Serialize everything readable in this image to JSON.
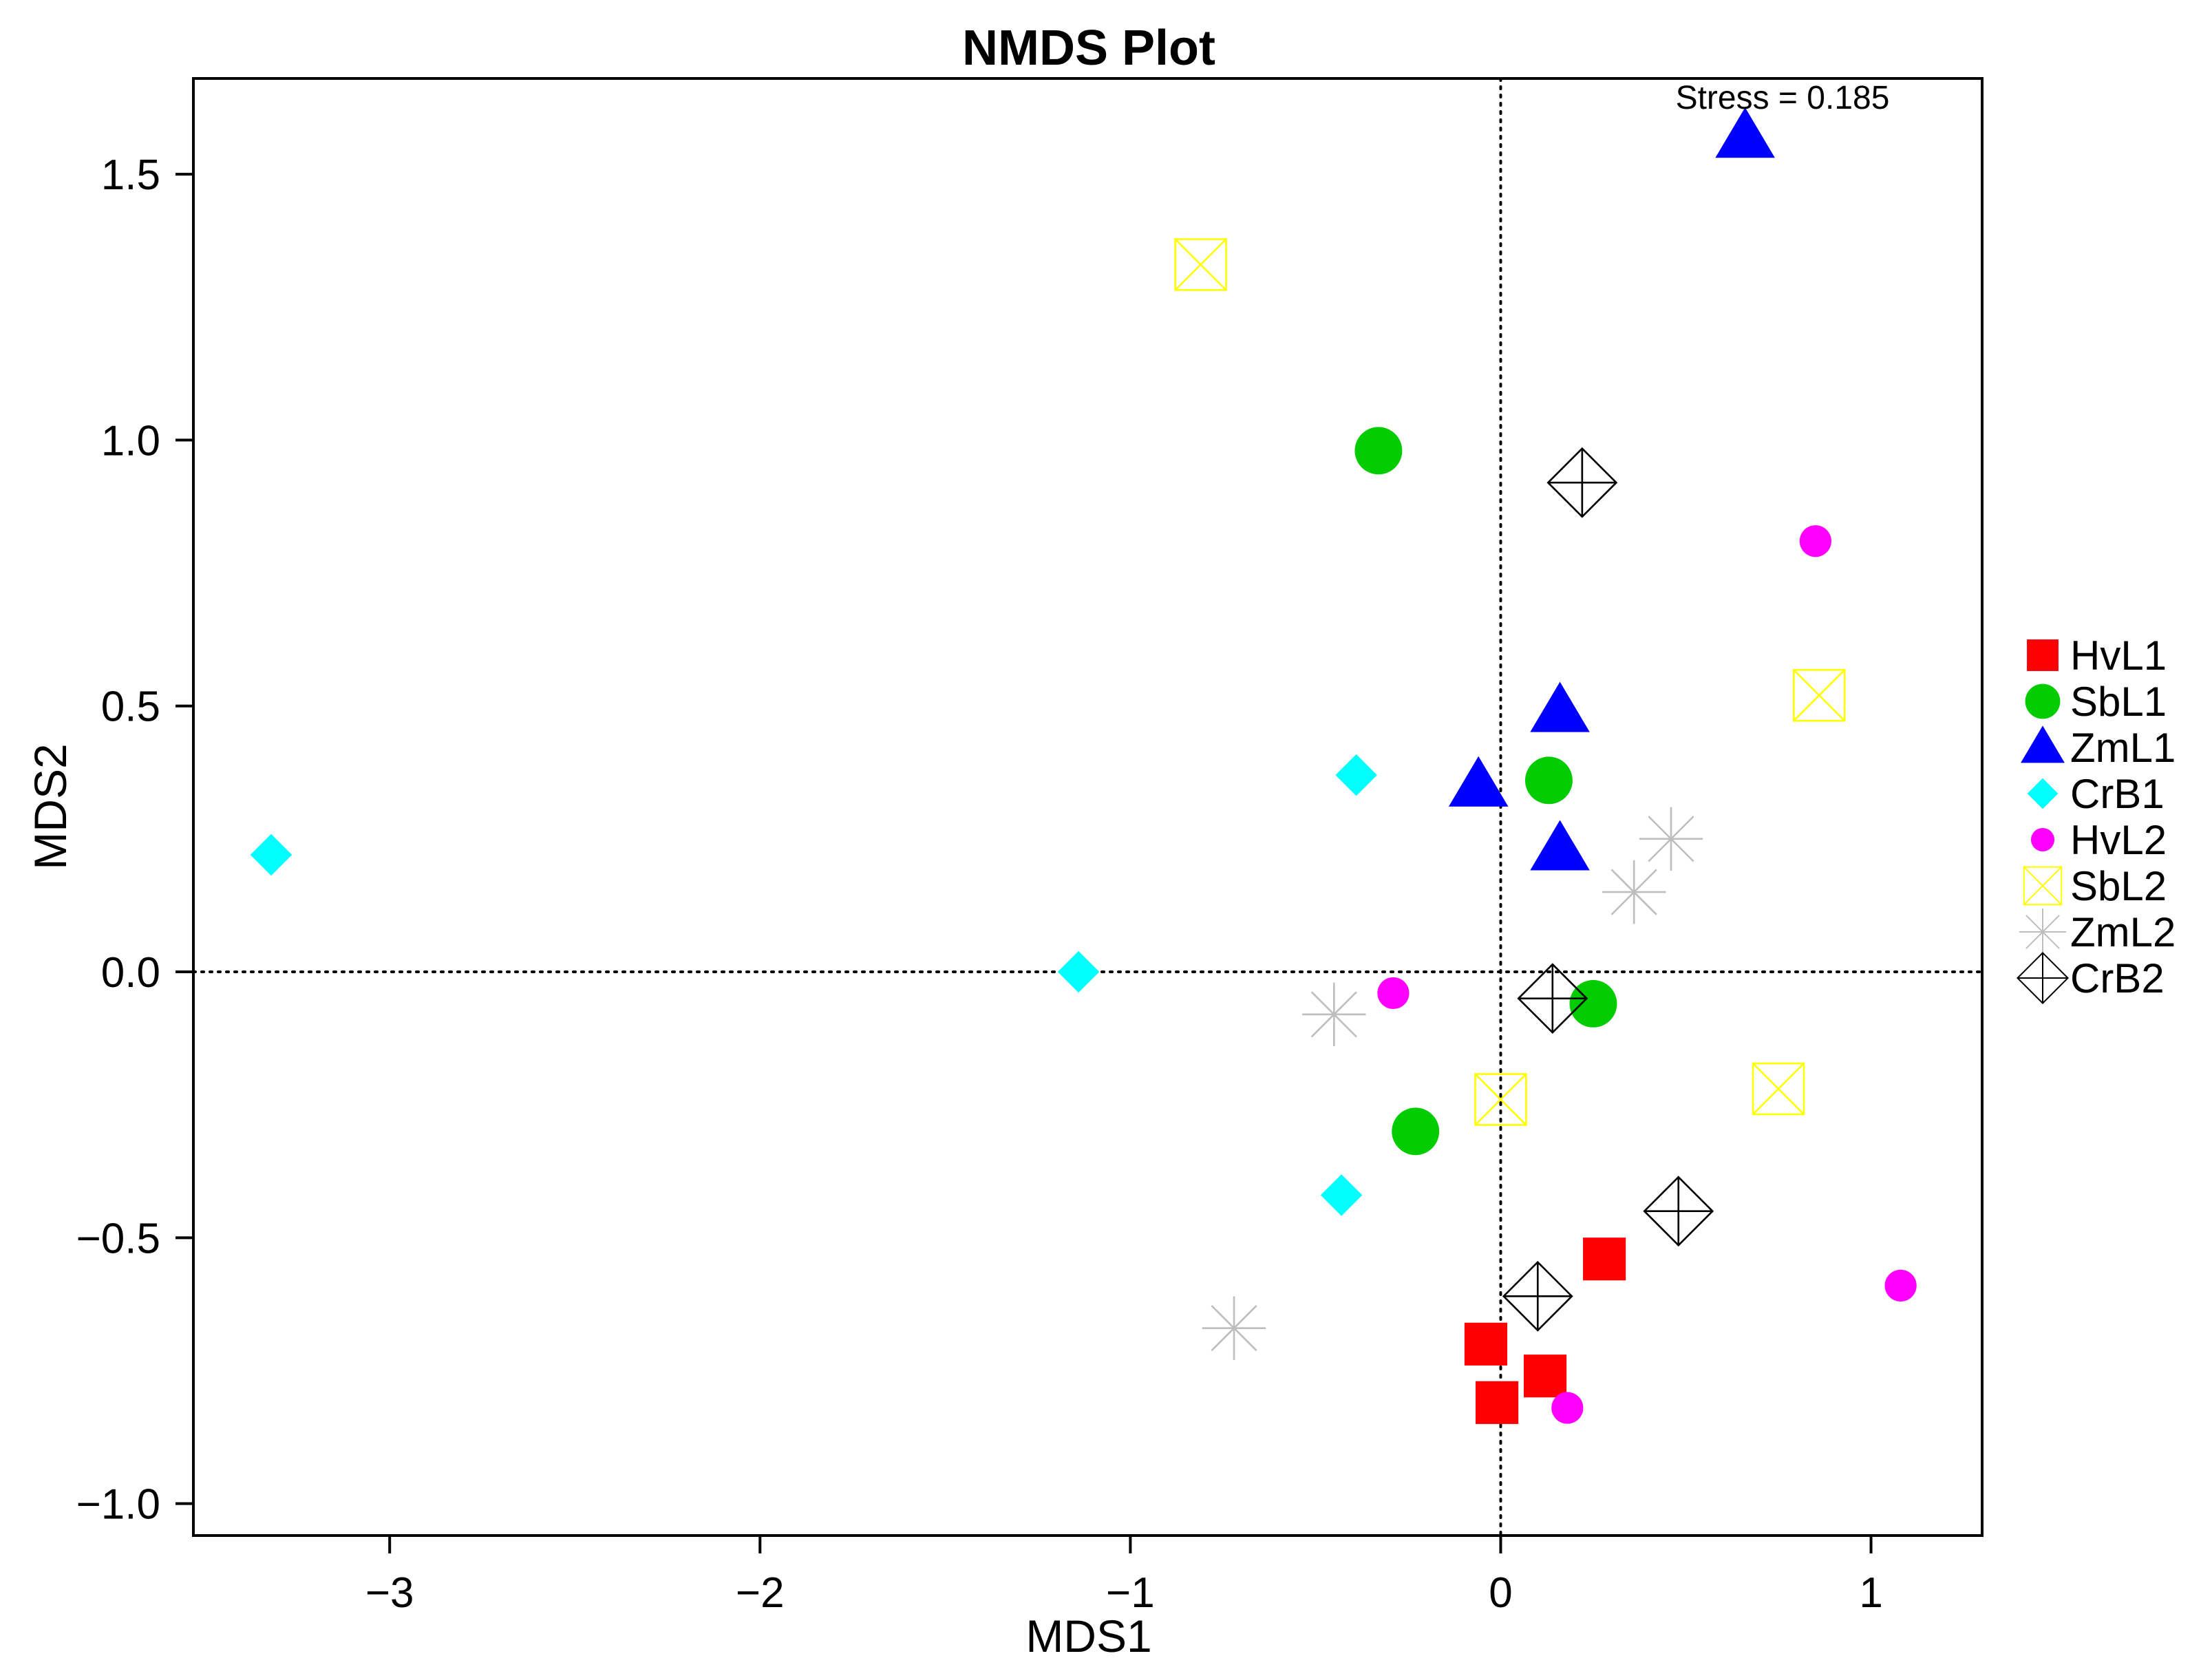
{
  "chart_data": {
    "type": "scatter",
    "title": "NMDS Plot",
    "xlabel": "MDS1",
    "ylabel": "MDS2",
    "xlim": [
      -3.53,
      1.3
    ],
    "ylim": [
      -1.06,
      1.68
    ],
    "x_ticks": [
      -3,
      -2,
      -1,
      0,
      1
    ],
    "y_ticks": [
      -1.0,
      -0.5,
      0.0,
      0.5,
      1.0,
      1.5
    ],
    "x_tick_labels": [
      "−3",
      "−2",
      "−1",
      "0",
      "1"
    ],
    "y_tick_labels": [
      "−1.0",
      "−0.5",
      "0.0",
      "0.5",
      "1.0",
      "1.5"
    ],
    "reference_lines": {
      "x": 0,
      "y": 0,
      "style": "dotted"
    },
    "annotation": "Stress = 0.185",
    "annotation_position": "top-right",
    "legend_position": "right",
    "series": [
      {
        "name": "HvL1",
        "marker": "filled-square",
        "color": "#ff0000",
        "points": [
          {
            "x": -0.04,
            "y": -0.7
          },
          {
            "x": 0.12,
            "y": -0.76
          },
          {
            "x": -0.01,
            "y": -0.81
          },
          {
            "x": 0.28,
            "y": -0.54
          }
        ]
      },
      {
        "name": "SbL1",
        "marker": "filled-circle",
        "color": "#00cc00",
        "points": [
          {
            "x": -0.33,
            "y": 0.98
          },
          {
            "x": 0.13,
            "y": 0.36
          },
          {
            "x": 0.25,
            "y": -0.06
          },
          {
            "x": -0.23,
            "y": -0.3
          }
        ]
      },
      {
        "name": "ZmL1",
        "marker": "filled-triangle",
        "color": "#0000ff",
        "points": [
          {
            "x": 0.66,
            "y": 1.57
          },
          {
            "x": 0.16,
            "y": 0.49
          },
          {
            "x": -0.06,
            "y": 0.35
          },
          {
            "x": 0.16,
            "y": 0.23
          }
        ]
      },
      {
        "name": "CrB1",
        "marker": "filled-diamond",
        "color": "#00ffff",
        "points": [
          {
            "x": -3.32,
            "y": 0.22
          },
          {
            "x": -0.39,
            "y": 0.37
          },
          {
            "x": -1.14,
            "y": 0.0
          },
          {
            "x": -0.43,
            "y": -0.42
          }
        ]
      },
      {
        "name": "HvL2",
        "marker": "small-filled-circle",
        "color": "#ff00ff",
        "points": [
          {
            "x": 0.85,
            "y": 0.81
          },
          {
            "x": -0.29,
            "y": -0.04
          },
          {
            "x": 1.08,
            "y": -0.59
          },
          {
            "x": 0.18,
            "y": -0.82
          }
        ]
      },
      {
        "name": "SbL2",
        "marker": "square-with-x",
        "color": "#ffff00",
        "points": [
          {
            "x": -0.81,
            "y": 1.33
          },
          {
            "x": 0.86,
            "y": 0.52
          },
          {
            "x": 0.0,
            "y": -0.24
          },
          {
            "x": 0.75,
            "y": -0.22
          }
        ]
      },
      {
        "name": "ZmL2",
        "marker": "asterisk",
        "color": "#bebebe",
        "points": [
          {
            "x": 0.46,
            "y": 0.25
          },
          {
            "x": 0.36,
            "y": 0.15
          },
          {
            "x": -0.45,
            "y": -0.08
          },
          {
            "x": -0.72,
            "y": -0.67
          }
        ]
      },
      {
        "name": "CrB2",
        "marker": "diamond-with-plus",
        "color": "#000000",
        "points": [
          {
            "x": 0.22,
            "y": 0.92
          },
          {
            "x": 0.14,
            "y": -0.05
          },
          {
            "x": 0.48,
            "y": -0.45
          },
          {
            "x": 0.1,
            "y": -0.61
          }
        ]
      }
    ]
  }
}
